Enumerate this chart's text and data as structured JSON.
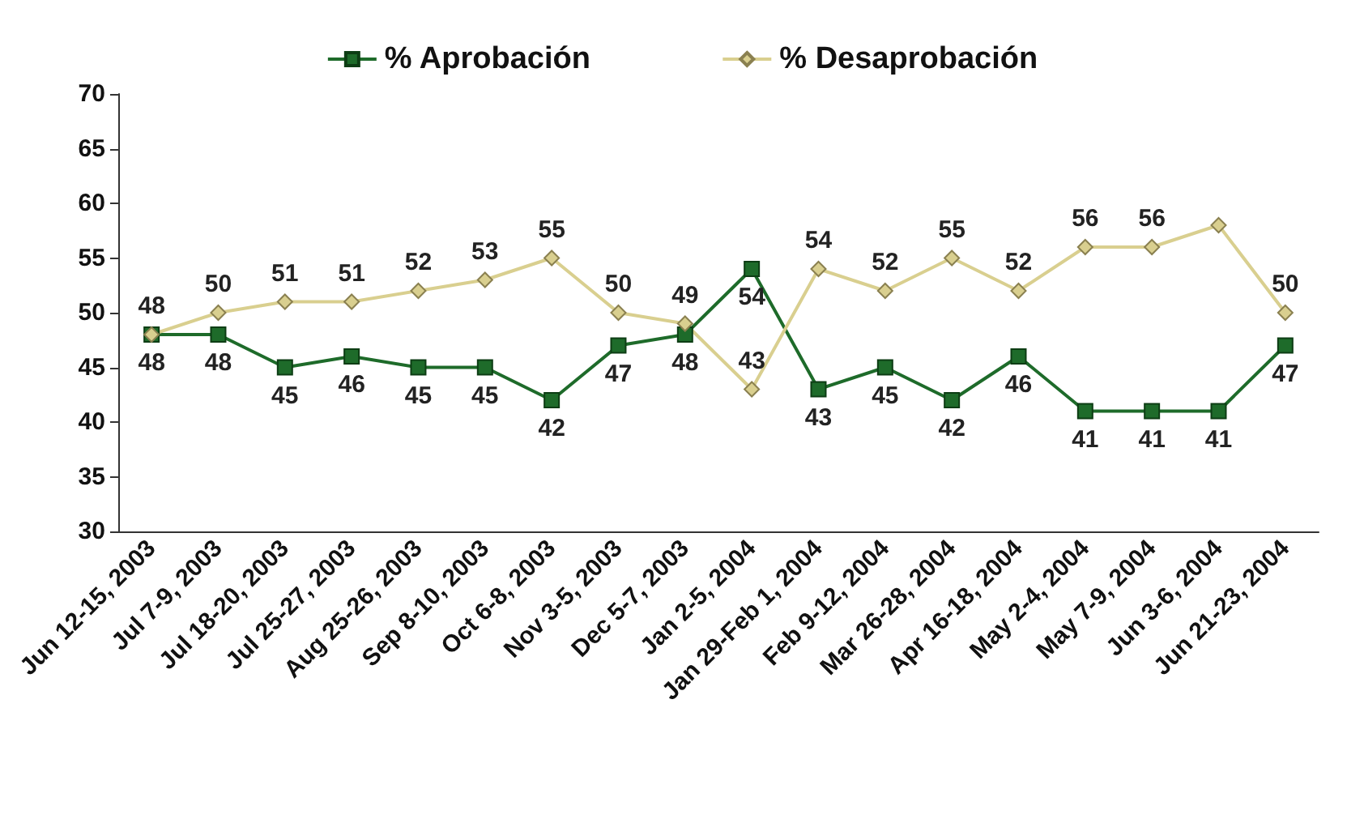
{
  "chart_data": {
    "type": "line",
    "categories": [
      "Jun 12-15, 2003",
      "Jul 7-9, 2003",
      "Jul 18-20, 2003",
      "Jul 25-27, 2003",
      "Aug 25-26, 2003",
      "Sep 8-10, 2003",
      "Oct 6-8, 2003",
      "Nov 3-5, 2003",
      "Dec 5-7, 2003",
      "Jan 2-5, 2004",
      "Jan 29-Feb 1, 2004",
      "Feb 9-12, 2004",
      "Mar 26-28, 2004",
      "Apr 16-18, 2004",
      "May 2-4, 2004",
      "May 7-9, 2004",
      "Jun 3-6, 2004",
      "Jun 21-23, 2004"
    ],
    "series": [
      {
        "name": "% Aprobación",
        "color": "#1e6b2a",
        "marker": "square",
        "values": [
          48,
          48,
          45,
          46,
          45,
          45,
          42,
          47,
          48,
          54,
          43,
          45,
          42,
          46,
          41,
          41,
          41,
          47
        ],
        "value_labels": [
          "48",
          "48",
          "45",
          "46",
          "45",
          "45",
          "42",
          "47",
          "48",
          "54",
          "43",
          "45",
          "42",
          "46",
          "41",
          "41",
          "41",
          "47"
        ]
      },
      {
        "name": "% Desaprobación",
        "color": "#d9cf8f",
        "marker": "diamond",
        "values": [
          48,
          50,
          51,
          51,
          52,
          53,
          55,
          50,
          49,
          43,
          54,
          52,
          55,
          52,
          56,
          56,
          58,
          50
        ],
        "value_labels": [
          "48",
          "50",
          "51",
          "51",
          "52",
          "53",
          "55",
          "50",
          "49",
          "43",
          "54",
          "52",
          "55",
          "52",
          "56",
          "56",
          null,
          "50"
        ]
      }
    ],
    "ylim": [
      30,
      70
    ],
    "yticks": [
      30,
      35,
      40,
      45,
      50,
      55,
      60,
      65,
      70
    ],
    "grid": false,
    "legend": "top"
  }
}
